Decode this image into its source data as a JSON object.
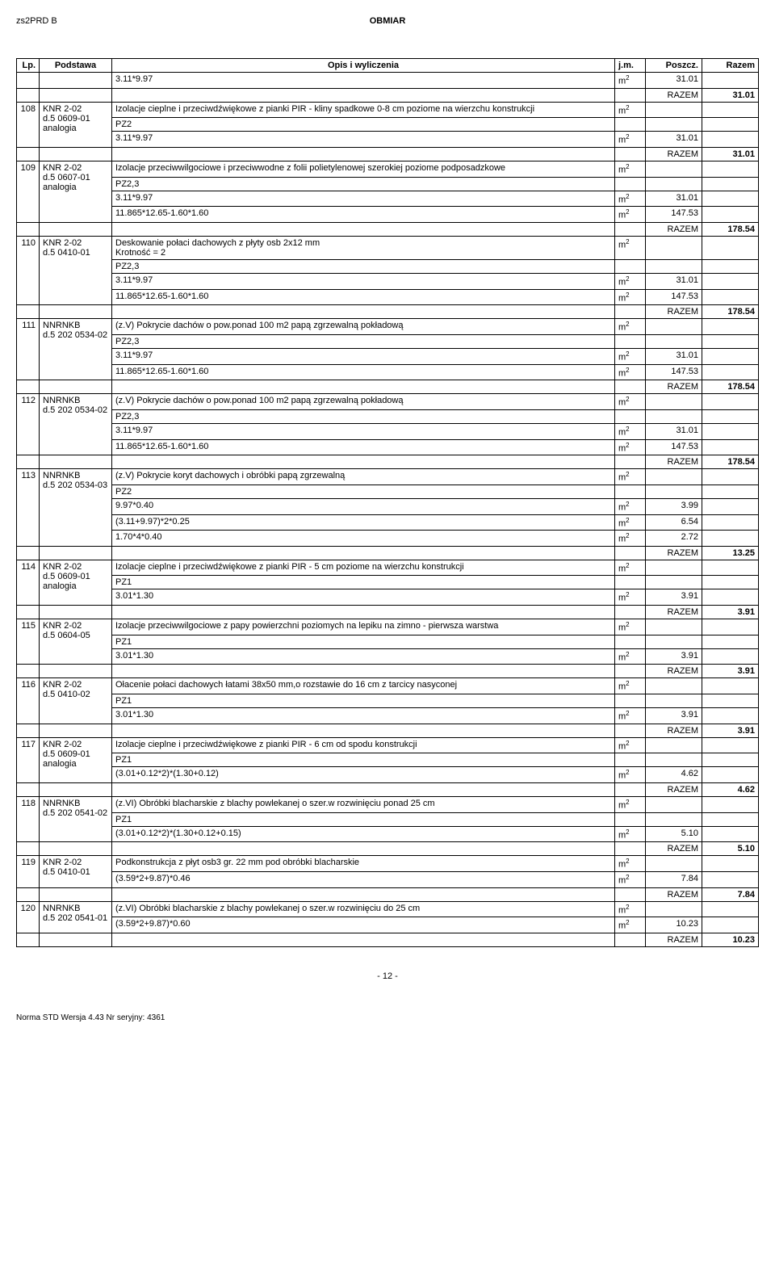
{
  "doc_header_left": "zs2PRD B",
  "doc_header_center": "OBMIAR",
  "table_headers": {
    "lp": "Lp.",
    "podstawa": "Podstawa",
    "opis": "Opis i wyliczenia",
    "jm": "j.m.",
    "poszcz": "Poszcz.",
    "razem": "Razem"
  },
  "razem_label": "RAZEM",
  "page_number": "- 12 -",
  "footer_text": "Norma STD Wersja 4.43 Nr seryjny: 4361",
  "rows": [
    {
      "lp": "",
      "pod": "",
      "opis": "3.11*9.97",
      "jm": "m2",
      "poszcz": "31.01",
      "razem": ""
    },
    {
      "razem_val": "31.01"
    },
    {
      "lp": "108",
      "pod": "KNR 2-02",
      "pod2": "d.5 0609-01",
      "pod3": "analogia",
      "opis": "Izolacje cieplne i przeciwdźwiękowe z pianki PIR  - kliny spadkowe 0-8 cm poziome na wierzchu konstrukcji",
      "jm": "m2",
      "lines": [
        {
          "opis": "PZ2"
        },
        {
          "opis": "3.11*9.97",
          "jm": "m2",
          "poszcz": "31.01"
        }
      ],
      "razem_val": "31.01"
    },
    {
      "lp": "109",
      "pod": "KNR 2-02",
      "pod2": "d.5 0607-01",
      "pod3": "analogia",
      "opis": "Izolacje przeciwwilgociowe i przeciwwodne z folii polietylenowej szerokiej poziome podposadzkowe",
      "jm": "m2",
      "lines": [
        {
          "opis": "PZ2,3"
        },
        {
          "opis": "3.11*9.97",
          "jm": "m2",
          "poszcz": "31.01"
        },
        {
          "opis": "11.865*12.65-1.60*1.60",
          "jm": "m2",
          "poszcz": "147.53"
        }
      ],
      "razem_val": "178.54"
    },
    {
      "lp": "110",
      "pod": "KNR 2-02",
      "pod2": "d.5 0410-01",
      "opis": "Deskowanie połaci dachowych z płyty osb 2x12 mm",
      "opis2": "Krotność = 2",
      "jm": "m2",
      "lines": [
        {
          "opis": "PZ2,3"
        },
        {
          "opis": "3.11*9.97",
          "jm": "m2",
          "poszcz": "31.01"
        },
        {
          "opis": "11.865*12.65-1.60*1.60",
          "jm": "m2",
          "poszcz": "147.53"
        }
      ],
      "razem_val": "178.54"
    },
    {
      "lp": "111",
      "pod": "NNRNKB",
      "pod2": "d.5 202 0534-02",
      "opis": "(z.V) Pokrycie dachów o pow.ponad 100 m2 papą zgrzewalną pokładową",
      "jm": "m2",
      "lines": [
        {
          "opis": "PZ2,3"
        },
        {
          "opis": "3.11*9.97",
          "jm": "m2",
          "poszcz": "31.01"
        },
        {
          "opis": "11.865*12.65-1.60*1.60",
          "jm": "m2",
          "poszcz": "147.53"
        }
      ],
      "razem_val": "178.54"
    },
    {
      "lp": "112",
      "pod": "NNRNKB",
      "pod2": "d.5 202 0534-02",
      "opis": "(z.V) Pokrycie dachów o pow.ponad 100 m2 papą zgrzewalną pokładową",
      "jm": "m2",
      "lines": [
        {
          "opis": "PZ2,3"
        },
        {
          "opis": "3.11*9.97",
          "jm": "m2",
          "poszcz": "31.01"
        },
        {
          "opis": "11.865*12.65-1.60*1.60",
          "jm": "m2",
          "poszcz": "147.53"
        }
      ],
      "razem_val": "178.54"
    },
    {
      "lp": "113",
      "pod": "NNRNKB",
      "pod2": "d.5 202 0534-03",
      "opis": "(z.V) Pokrycie koryt dachowych i obróbki papą zgrzewalną",
      "jm": "m2",
      "lines": [
        {
          "opis": "PZ2"
        },
        {
          "opis": "9.97*0.40",
          "jm": "m2",
          "poszcz": "3.99"
        },
        {
          "opis": "(3.11+9.97)*2*0.25",
          "jm": "m2",
          "poszcz": "6.54"
        },
        {
          "opis": "1.70*4*0.40",
          "jm": "m2",
          "poszcz": "2.72"
        }
      ],
      "razem_val": "13.25"
    },
    {
      "lp": "114",
      "pod": "KNR 2-02",
      "pod2": "d.5 0609-01",
      "pod3": "analogia",
      "opis": "Izolacje cieplne i przeciwdźwiękowe z pianki PIR  - 5 cm poziome na wierzchu konstrukcji",
      "jm": "m2",
      "lines": [
        {
          "opis": "PZ1"
        },
        {
          "opis": "3.01*1.30",
          "jm": "m2",
          "poszcz": "3.91"
        }
      ],
      "razem_val": "3.91"
    },
    {
      "lp": "115",
      "pod": "KNR 2-02",
      "pod2": "d.5 0604-05",
      "opis": "Izolacje przeciwwilgociowe z papy powierzchni poziomych na lepiku na zimno - pierwsza warstwa",
      "jm": "m2",
      "lines": [
        {
          "opis": "PZ1"
        },
        {
          "opis": "3.01*1.30",
          "jm": "m2",
          "poszcz": "3.91"
        }
      ],
      "razem_val": "3.91"
    },
    {
      "lp": "116",
      "pod": "KNR 2-02",
      "pod2": "d.5 0410-02",
      "opis": "Ołacenie połaci dachowych łatami 38x50 mm,o rozstawie do 16 cm z tarcicy nasyconej",
      "jm": "m2",
      "lines": [
        {
          "opis": "PZ1"
        },
        {
          "opis": "3.01*1.30",
          "jm": "m2",
          "poszcz": "3.91"
        }
      ],
      "razem_val": "3.91"
    },
    {
      "lp": "117",
      "pod": "KNR 2-02",
      "pod2": "d.5 0609-01",
      "pod3": "analogia",
      "opis": "Izolacje cieplne i przeciwdźwiękowe z pianki PIR  - 6 cm od spodu konstrukcji",
      "jm": "m2",
      "lines": [
        {
          "opis": "PZ1"
        },
        {
          "opis": "(3.01+0.12*2)*(1.30+0.12)",
          "jm": "m2",
          "poszcz": "4.62"
        }
      ],
      "razem_val": "4.62"
    },
    {
      "lp": "118",
      "pod": "NNRNKB",
      "pod2": "d.5 202 0541-02",
      "opis": "(z.VI) Obróbki blacharskie z blachy powlekanej o szer.w rozwinięciu ponad 25 cm",
      "jm": "m2",
      "lines": [
        {
          "opis": "PZ1"
        },
        {
          "opis": "(3.01+0.12*2)*(1.30+0.12+0.15)",
          "jm": "m2",
          "poszcz": "5.10"
        }
      ],
      "razem_val": "5.10"
    },
    {
      "lp": "119",
      "pod": "KNR 2-02",
      "pod2": "d.5 0410-01",
      "opis": "Podkonstrukcja z płyt osb3 gr. 22 mm pod obróbki  blacharskie",
      "jm": "m2",
      "lines": [
        {
          "opis": "(3.59*2+9.87)*0.46",
          "jm": "m2",
          "poszcz": "7.84"
        }
      ],
      "razem_val": "7.84"
    },
    {
      "lp": "120",
      "pod": "NNRNKB",
      "pod2": "d.5 202 0541-01",
      "opis": "(z.VI) Obróbki blacharskie z blachy powlekanej o szer.w rozwinięciu do 25 cm",
      "jm": "m2",
      "lines": [
        {
          "opis": "(3.59*2+9.87)*0.60",
          "jm": "m2",
          "poszcz": "10.23"
        }
      ],
      "razem_val": "10.23"
    }
  ]
}
